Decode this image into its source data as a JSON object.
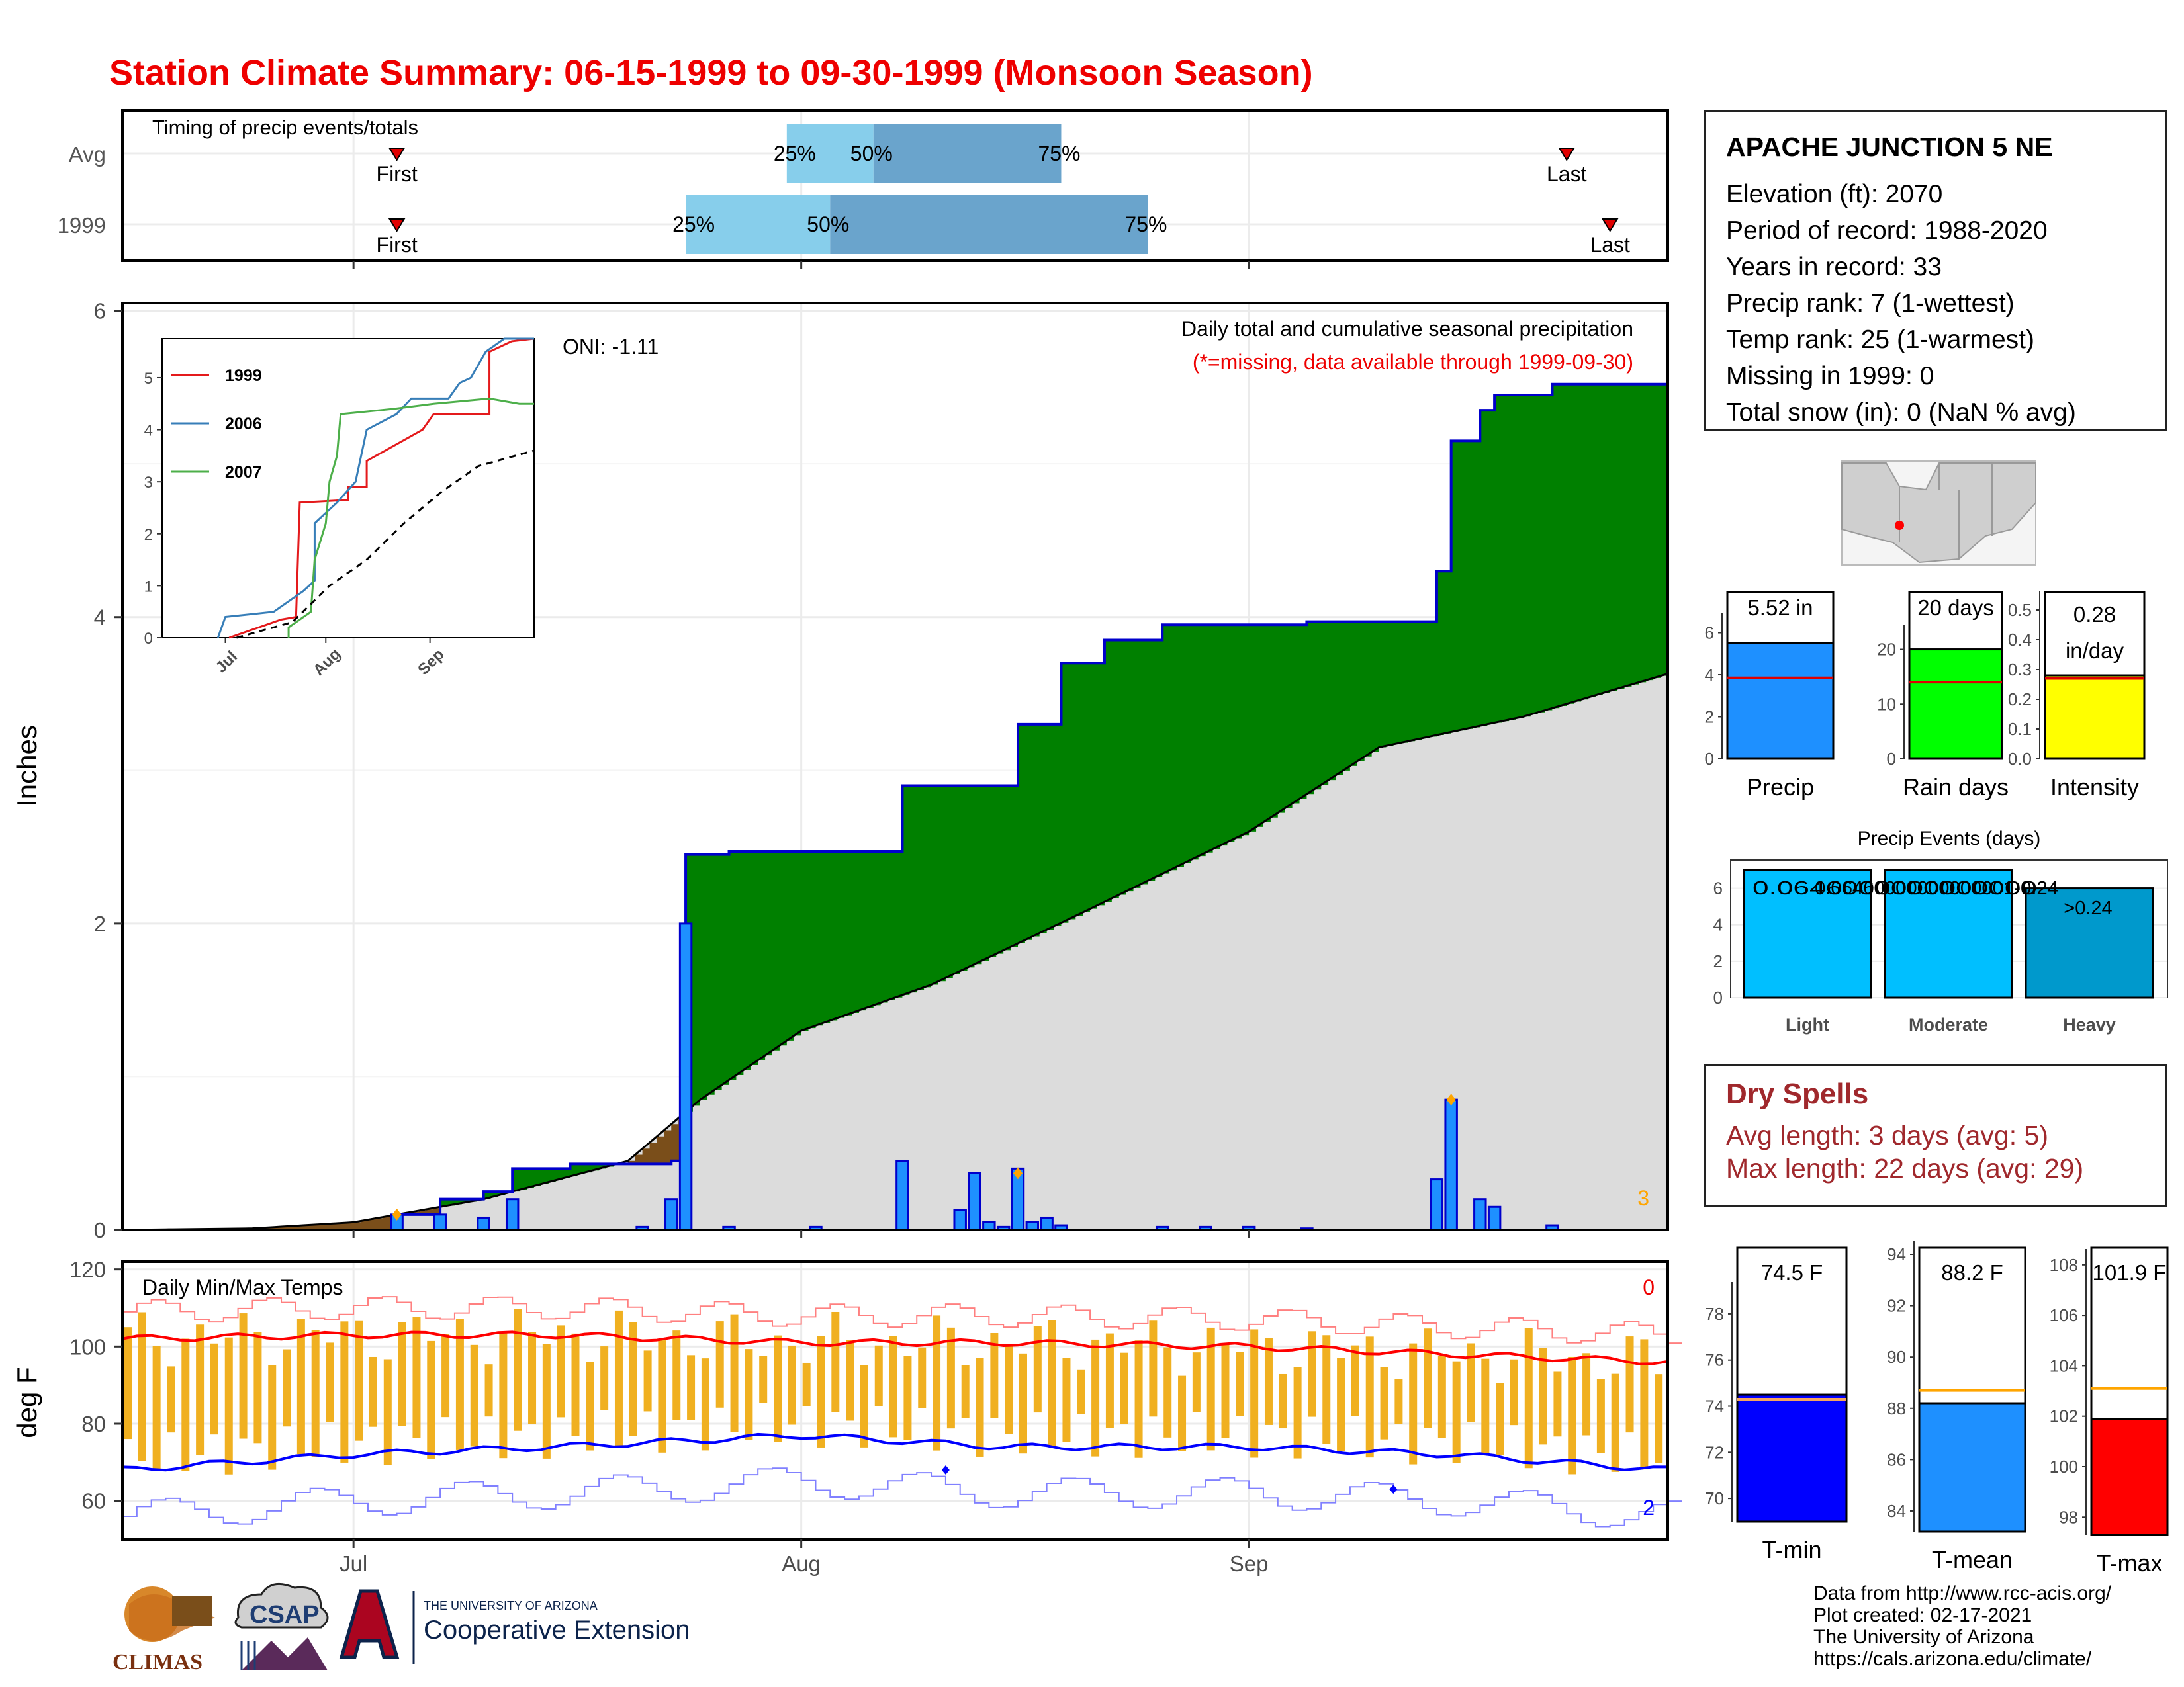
{
  "title": "Station Climate Summary: 06-15-1999 to 09-30-1999 (Monsoon Season)",
  "colors": {
    "title": "#ee0000",
    "precip_bar": "#1e90ff",
    "cum_fill": "#008000",
    "deficit_fill": "#7a4e1a",
    "avg_fill": "#dcdcdc",
    "tmax": "#ff0000",
    "tmin": "#0000ff",
    "daily_temp_bar": "#f0b020",
    "timing_light": "#87ceeb",
    "timing_dark": "#6aa4cc",
    "rain_days": "#00ff00",
    "intensity": "#ffff00",
    "events_light": "#00bfff",
    "events_heavy": "#0099cc",
    "dry_text": "#a0282c"
  },
  "timing": {
    "title": "Timing of precip events/totals",
    "rows": [
      {
        "label": "Avg",
        "first_label": "First",
        "last_label": "Last",
        "first": "1999-07-04",
        "last": "1999-09-23",
        "p25_label": "25%",
        "p50_label": "50%",
        "p75_label": "75%",
        "p25": "1999-07-31",
        "p50": "1999-08-06",
        "p75": "1999-08-19"
      },
      {
        "label": "1999",
        "first_label": "First",
        "last_label": "Last",
        "first": "1999-07-04",
        "last": "1999-09-26",
        "p25_label": "25%",
        "p50_label": "50%",
        "p75_label": "75%",
        "p25": "1999-07-24",
        "p50": "1999-08-03",
        "p75": "1999-08-25"
      }
    ]
  },
  "precip_panel": {
    "ylabel": "Inches",
    "y_ticks": [
      "0",
      "2",
      "4",
      "6"
    ],
    "legend_title": "Daily total and cumulative seasonal precipitation",
    "missing_note": "(*=missing, data available through 1999-09-30)",
    "oni": "ONI: -1.11",
    "missing_count": "3"
  },
  "x_month_labels": [
    "Jul",
    "Aug",
    "Sep"
  ],
  "inset": {
    "y_ticks": [
      "0",
      "1",
      "2",
      "3",
      "4",
      "5"
    ],
    "x_ticks": [
      "Jul",
      "Aug",
      "Sep"
    ],
    "legend": [
      {
        "name": "1999",
        "color": "#e41a1c"
      },
      {
        "name": "2006",
        "color": "#377eb8"
      },
      {
        "name": "2007",
        "color": "#4daf4a"
      }
    ]
  },
  "temp_panel": {
    "title": "Daily Min/Max Temps",
    "ylabel": "deg F",
    "y_ticks": [
      "60",
      "80",
      "100",
      "120"
    ],
    "count_top": "0",
    "count_bottom": "2"
  },
  "station": {
    "name": "APACHE JUNCTION 5 NE",
    "lines": [
      "Elevation (ft): 2070",
      "Period of record: 1988-2020",
      "Years in record: 33",
      "Precip rank: 7 (1-wettest)",
      "Temp rank: 25 (1-warmest)",
      "Missing in 1999: 0",
      "Total snow (in): 0 (NaN % avg)"
    ]
  },
  "mini_bars": {
    "precip": {
      "value_label": "5.52 in",
      "label": "Precip",
      "y_ticks": [
        "0",
        "2",
        "4",
        "6"
      ]
    },
    "rain_days": {
      "value_label": "20 days",
      "label": "Rain days",
      "y_ticks": [
        "0",
        "10",
        "20"
      ]
    },
    "intensity": {
      "value_label": "0.28",
      "unit_label": "in/day",
      "label": "Intensity",
      "y_ticks": [
        "0.0",
        "0.1",
        "0.2",
        "0.3",
        "0.4",
        "0.5"
      ]
    }
  },
  "events": {
    "title": "Precip Events (days)",
    "y_ticks": [
      "0",
      "2",
      "4",
      "6"
    ],
    "bars": [
      {
        "label": "Light",
        "top": "0.0646000000000000"
      },
      {
        "label": "Moderate",
        "top": "0.06460000000000001-0.24"
      },
      {
        "label": "Heavy",
        "top": ">0.24"
      }
    ]
  },
  "dry_spells": {
    "title": "Dry Spells",
    "avg": "Avg length: 3 days (avg: 5)",
    "max": "Max length: 22 days (avg: 29)"
  },
  "temp_bars": {
    "tmin": {
      "value_label": "74.5 F",
      "label": "T-min",
      "y_ticks": [
        "70",
        "72",
        "74",
        "76",
        "78"
      ]
    },
    "tmean": {
      "value_label": "88.2 F",
      "label": "T-mean",
      "y_ticks": [
        "84",
        "86",
        "88",
        "90",
        "92",
        "94"
      ]
    },
    "tmax": {
      "value_label": "101.9 F",
      "label": "T-max",
      "y_ticks": [
        "98",
        "100",
        "102",
        "104",
        "106",
        "108"
      ]
    }
  },
  "logos": {
    "climas": "CLIMAS",
    "csap": "CSAP",
    "ua_small": "THE UNIVERSITY OF ARIZONA",
    "ua_big": "Cooperative Extension"
  },
  "credits": [
    "Data from http://www.rcc-acis.org/",
    "Plot created: 02-17-2021",
    "The University of Arizona",
    "https://cals.arizona.edu/climate/"
  ],
  "chart_data": [
    {
      "type": "bar",
      "name": "daily_precip",
      "x": [
        "1999-07-04",
        "1999-07-07",
        "1999-07-10",
        "1999-07-12",
        "1999-07-21",
        "1999-07-23",
        "1999-07-24",
        "1999-07-27",
        "1999-08-02",
        "1999-08-08",
        "1999-08-12",
        "1999-08-13",
        "1999-08-14",
        "1999-08-15",
        "1999-08-16",
        "1999-08-17",
        "1999-08-18",
        "1999-08-19",
        "1999-08-26",
        "1999-08-29",
        "1999-09-01",
        "1999-09-05",
        "1999-09-14",
        "1999-09-15",
        "1999-09-17",
        "1999-09-18",
        "1999-09-22"
      ],
      "values": [
        0.1,
        0.1,
        0.08,
        0.2,
        0.02,
        0.2,
        2.0,
        0.02,
        0.02,
        0.45,
        0.13,
        0.37,
        0.05,
        0.02,
        0.4,
        0.05,
        0.08,
        0.03,
        0.02,
        0.02,
        0.02,
        0.01,
        0.33,
        0.85,
        0.2,
        0.15,
        0.03
      ],
      "ylim": [
        0,
        6
      ],
      "ylabel": "Inches"
    },
    {
      "type": "area",
      "name": "cumulative_precip",
      "series": [
        {
          "name": "1999",
          "x": [
            "1999-06-15",
            "1999-07-04",
            "1999-07-07",
            "1999-07-10",
            "1999-07-12",
            "1999-07-16",
            "1999-07-23",
            "1999-07-24",
            "1999-07-27",
            "1999-08-08",
            "1999-08-16",
            "1999-08-19",
            "1999-08-22",
            "1999-08-26",
            "1999-08-29",
            "1999-09-05",
            "1999-09-14",
            "1999-09-15",
            "1999-09-17",
            "1999-09-18",
            "1999-09-22",
            "1999-09-30"
          ],
          "values": [
            0,
            0.1,
            0.2,
            0.25,
            0.4,
            0.43,
            0.45,
            2.45,
            2.47,
            2.9,
            3.3,
            3.7,
            3.85,
            3.95,
            3.95,
            3.97,
            4.3,
            5.15,
            5.35,
            5.45,
            5.52,
            5.52
          ]
        },
        {
          "name": "Avg",
          "x": [
            "1999-06-15",
            "1999-06-24",
            "1999-07-01",
            "1999-07-10",
            "1999-07-20",
            "1999-07-25",
            "1999-08-01",
            "1999-08-10",
            "1999-08-20",
            "1999-09-01",
            "1999-09-10",
            "1999-09-20",
            "1999-09-30"
          ],
          "values": [
            0,
            0.01,
            0.05,
            0.2,
            0.45,
            0.85,
            1.3,
            1.6,
            2.05,
            2.6,
            3.15,
            3.35,
            3.63
          ]
        }
      ],
      "ylim": [
        0,
        6
      ]
    },
    {
      "type": "line",
      "name": "daily_temps",
      "x": [
        "1999-06-15",
        "1999-07-01",
        "1999-07-15",
        "1999-08-01",
        "1999-08-15",
        "1999-09-01",
        "1999-09-15",
        "1999-09-30"
      ],
      "series": [
        {
          "name": "Avg max",
          "values": [
            102,
            103,
            103,
            101,
            101,
            100,
            98,
            96
          ]
        },
        {
          "name": "Avg min",
          "values": [
            68,
            72,
            74,
            77,
            74,
            74,
            72,
            68
          ]
        }
      ],
      "ylim": [
        50,
        122
      ],
      "ylabel": "deg F"
    },
    {
      "type": "line",
      "name": "inset_cumulative",
      "x_ticks": [
        "Jul",
        "Aug",
        "Sep"
      ],
      "series": [
        {
          "name": "1999",
          "values": [
            0,
            0.4,
            2.65,
            4.3,
            5.6,
            5.75
          ]
        },
        {
          "name": "2006",
          "values": [
            0,
            0.5,
            1.0,
            4.0,
            4.5,
            5.75
          ]
        },
        {
          "name": "2007",
          "values": [
            0,
            0,
            0.2,
            4.3,
            4.5,
            4.5
          ]
        }
      ],
      "ylim": [
        0,
        5.75
      ]
    },
    {
      "type": "bar",
      "name": "season_summary",
      "categories": [
        "Precip",
        "Rain days",
        "Intensity",
        "T-min",
        "T-mean",
        "T-max"
      ],
      "values": [
        5.52,
        20,
        0.28,
        74.5,
        88.2,
        101.9
      ],
      "averages": [
        3.85,
        14,
        0.27,
        74.3,
        88.7,
        103.1
      ]
    },
    {
      "type": "bar",
      "name": "precip_events",
      "categories": [
        "Light",
        "Moderate",
        "Heavy"
      ],
      "values": [
        7,
        7,
        6
      ],
      "ylim": [
        0,
        7
      ],
      "ylabel": "Precip Events (days)"
    }
  ]
}
